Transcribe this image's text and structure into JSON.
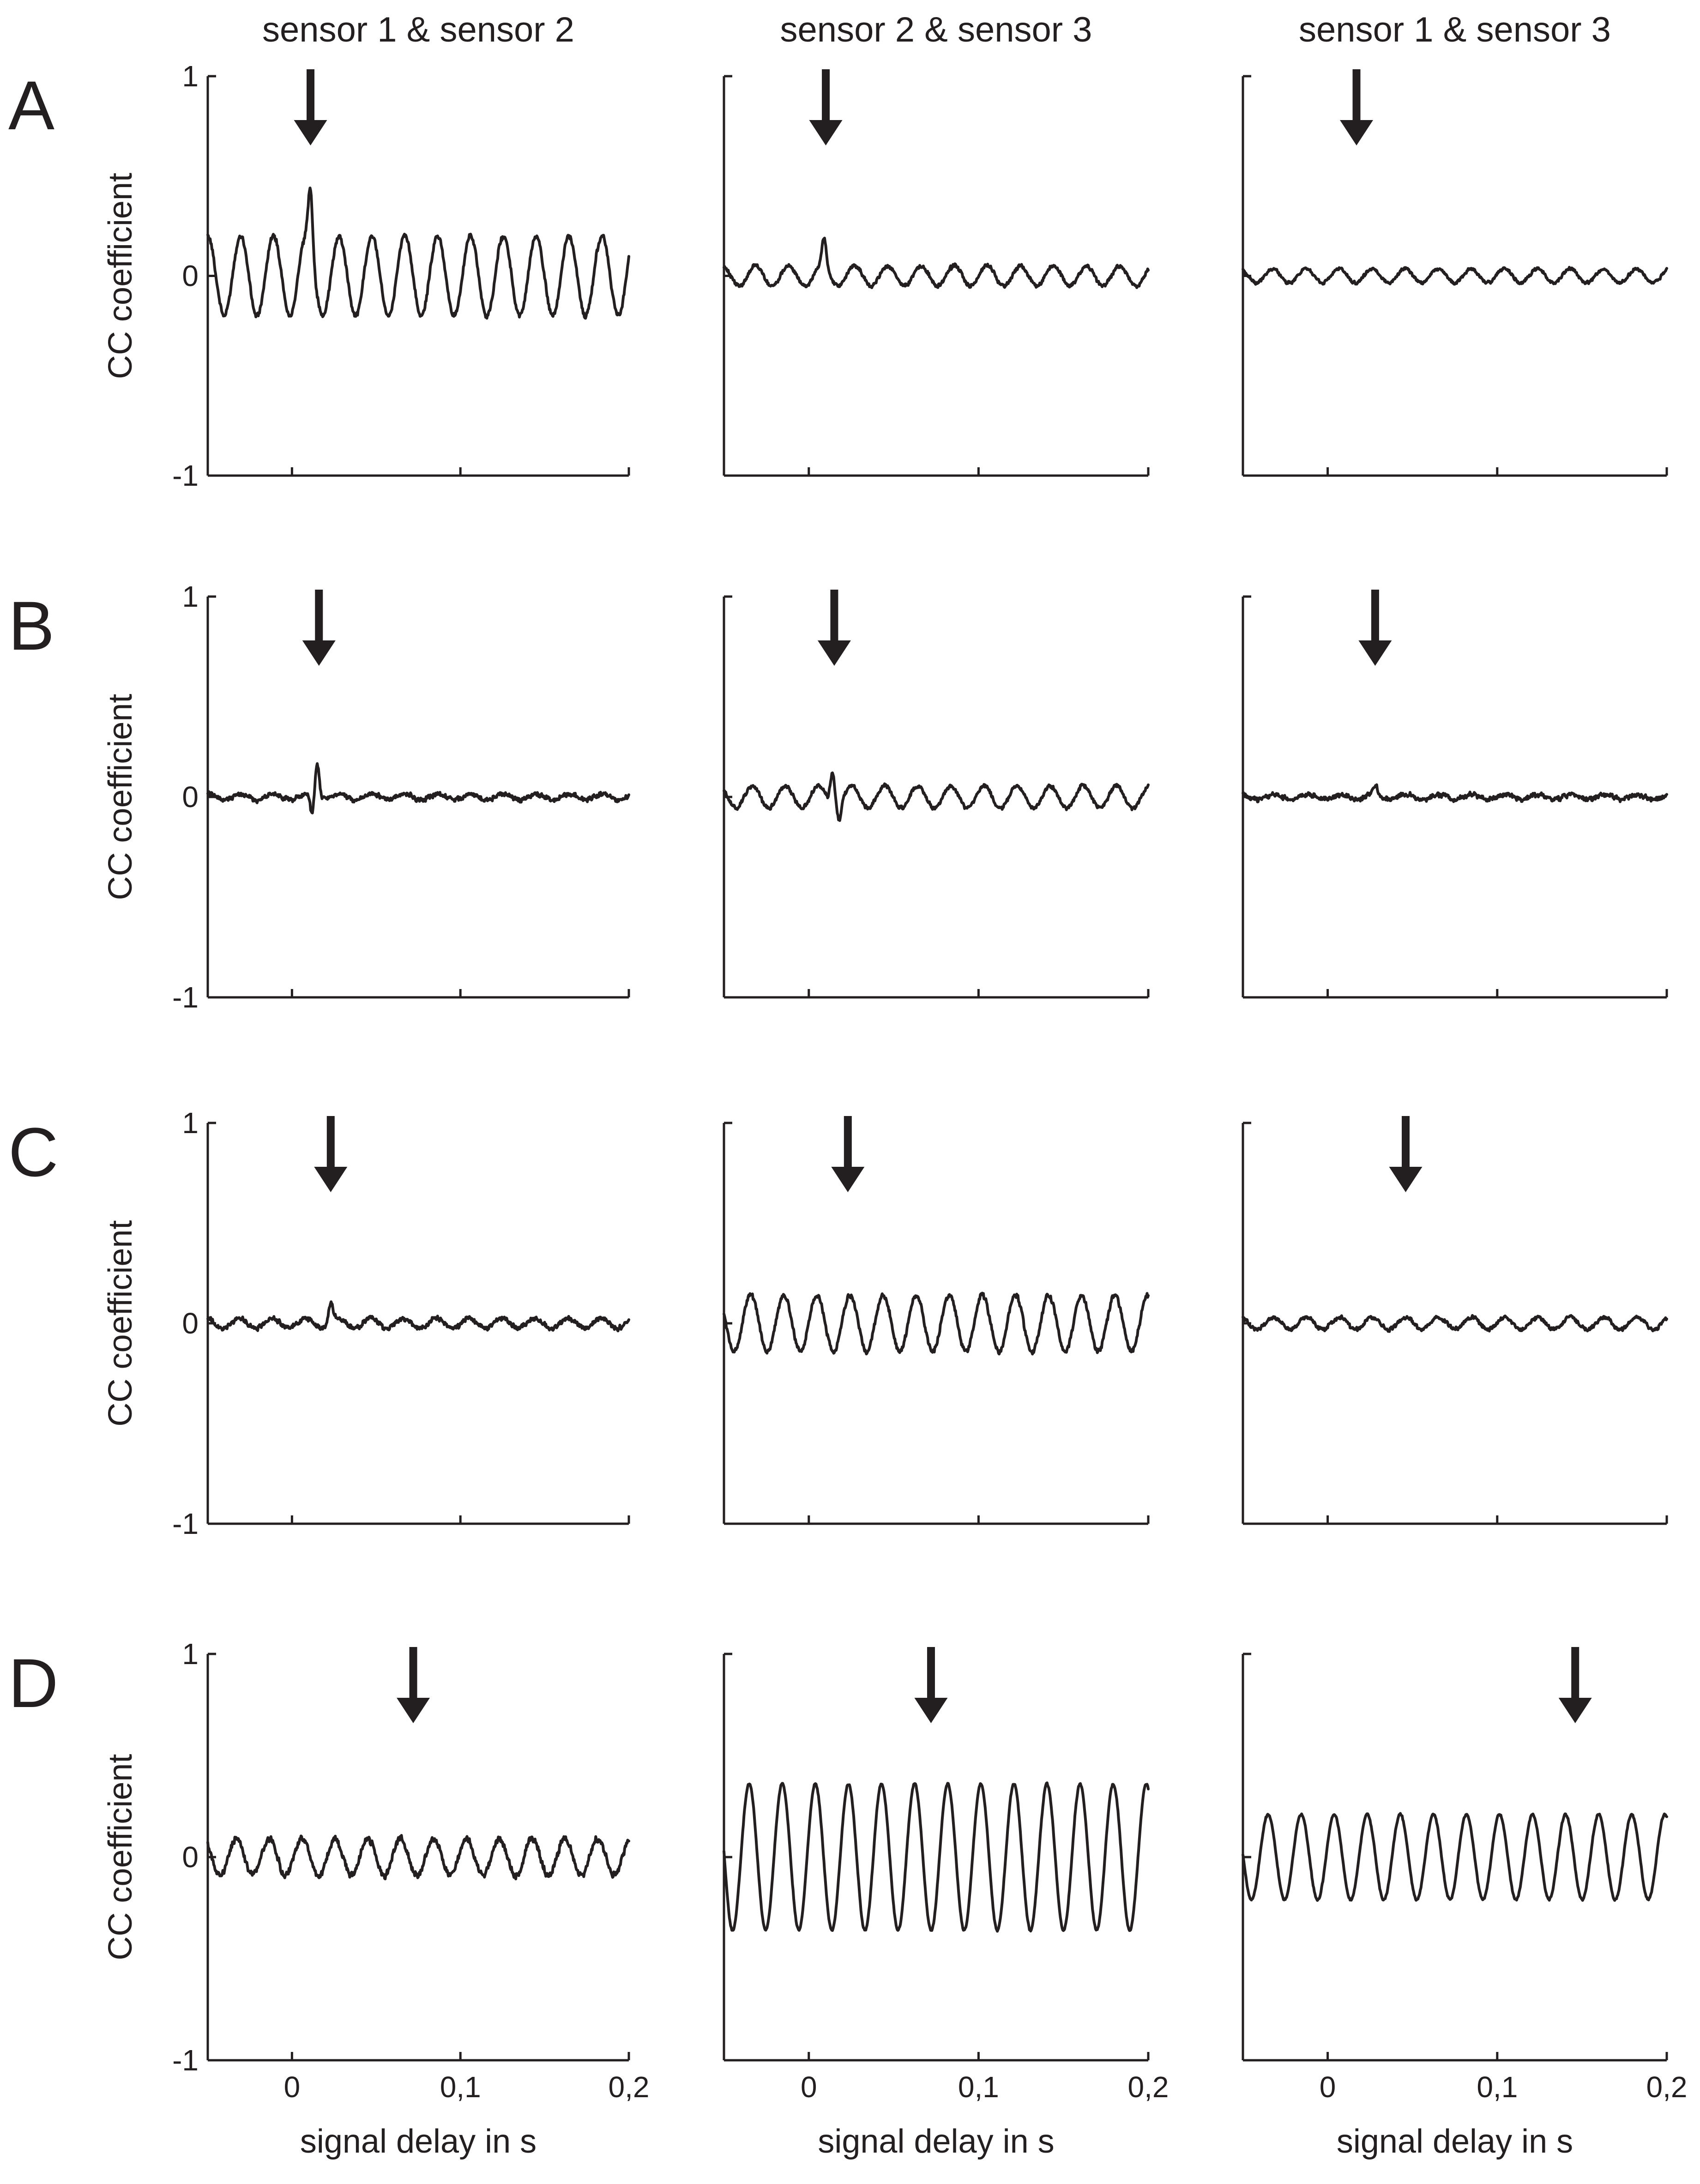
{
  "chart_data": {
    "type": "line",
    "layout": "4 rows x 3 columns of small-multiple line plots",
    "column_titles": [
      "sensor 1 & sensor 2",
      "sensor 2 & sensor 3",
      "sensor 1 & sensor 3"
    ],
    "row_labels": [
      "A",
      "B",
      "C",
      "D"
    ],
    "ylabel": "CC coefficient",
    "xlabel": "signal delay in s",
    "xlim": [
      -0.05,
      0.2
    ],
    "ylim": [
      -1,
      1
    ],
    "x_ticks": [
      0,
      0.1,
      0.2
    ],
    "x_tick_labels": [
      "0",
      "0,1",
      "0,2"
    ],
    "y_ticks": [
      1,
      0,
      -1
    ],
    "y_tick_labels": [
      "1",
      "0",
      "-1"
    ],
    "x_axis_labels_shown_on_rows": [
      "D"
    ],
    "y_axis_labels_shown_on_columns": [
      1
    ],
    "panels": [
      [
        {
          "arrow_x": 0.011,
          "trace": {
            "amplitude": 0.2,
            "period": 0.0195,
            "phase": 0.0,
            "noise": 0.015,
            "peak": {
              "x": 0.011,
              "y": 0.3
            }
          }
        },
        {
          "arrow_x": 0.01,
          "trace": {
            "amplitude": 0.05,
            "period": 0.0195,
            "phase": 0.3,
            "noise": 0.012,
            "peak": {
              "x": 0.009,
              "y": 0.15
            }
          }
        },
        {
          "arrow_x": 0.017,
          "trace": {
            "amplitude": 0.035,
            "period": 0.0195,
            "phase": 0.6,
            "noise": 0.01
          }
        }
      ],
      [
        {
          "arrow_x": 0.016,
          "trace": {
            "amplitude": 0.015,
            "period": 0.0195,
            "phase": 0.0,
            "noise": 0.015,
            "peak": {
              "x": 0.015,
              "y": 0.17
            },
            "dip": {
              "x": 0.012,
              "y": -0.09
            }
          }
        },
        {
          "arrow_x": 0.015,
          "trace": {
            "amplitude": 0.055,
            "period": 0.0195,
            "phase": 0.9,
            "noise": 0.012,
            "peak": {
              "x": 0.014,
              "y": 0.17
            },
            "dip": {
              "x": 0.018,
              "y": -0.08
            }
          }
        },
        {
          "arrow_x": 0.028,
          "trace": {
            "amplitude": 0.012,
            "period": 0.0195,
            "phase": 0.4,
            "noise": 0.015,
            "peak": {
              "x": 0.028,
              "y": 0.05
            }
          }
        }
      ],
      [
        {
          "arrow_x": 0.023,
          "trace": {
            "amplitude": 0.025,
            "period": 0.0195,
            "phase": 0.2,
            "noise": 0.015,
            "peak": {
              "x": 0.023,
              "y": 0.1
            }
          }
        },
        {
          "arrow_x": 0.023,
          "trace": {
            "amplitude": 0.14,
            "period": 0.0195,
            "phase": 1.2,
            "noise": 0.015
          }
        },
        {
          "arrow_x": 0.046,
          "trace": {
            "amplitude": 0.03,
            "period": 0.0195,
            "phase": 0.5,
            "noise": 0.012
          }
        }
      ],
      [
        {
          "arrow_x": 0.072,
          "trace": {
            "amplitude": 0.09,
            "period": 0.0195,
            "phase": 0.8,
            "noise": 0.02
          }
        },
        {
          "arrow_x": 0.072,
          "trace": {
            "amplitude": 0.36,
            "period": 0.0195,
            "phase": 1.5,
            "noise": 0.006
          }
        },
        {
          "arrow_x": 0.146,
          "trace": {
            "amplitude": 0.21,
            "period": 0.0195,
            "phase": 1.5,
            "noise": 0.006
          }
        }
      ]
    ]
  }
}
